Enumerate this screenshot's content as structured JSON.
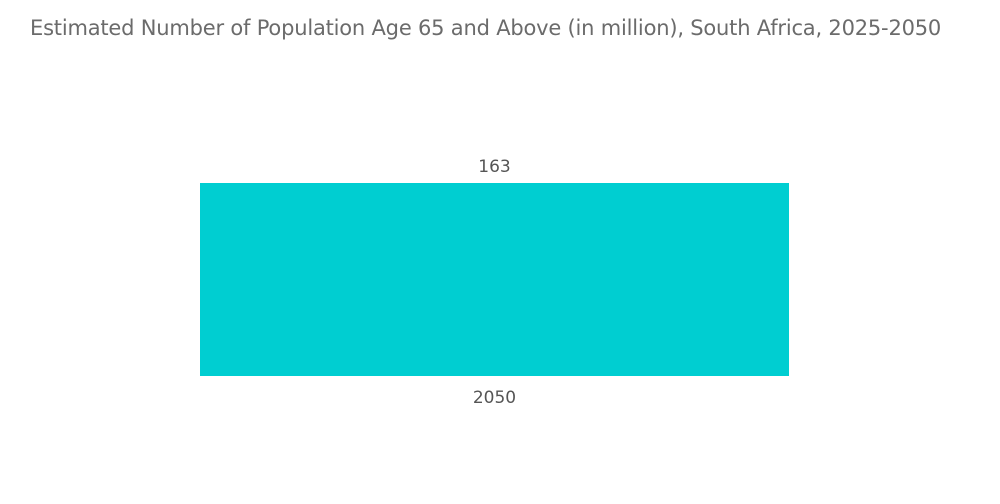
{
  "chart_data": {
    "type": "bar",
    "title": "Estimated Number of Population Age 65 and Above (in million), South Africa, 2025-2050",
    "categories": [
      "2050"
    ],
    "values": [
      163
    ],
    "xlabel": "",
    "ylabel": "",
    "ylim": [
      0,
      163
    ],
    "grid": false,
    "legend": "none",
    "bar_color": "#00CED1",
    "data_labels": true
  }
}
